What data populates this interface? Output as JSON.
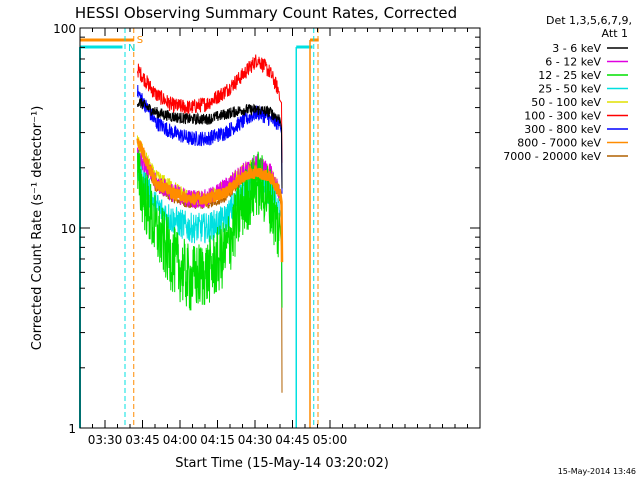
{
  "chart_data": {
    "type": "line",
    "title": "HESSI Observing Summary Count Rates, Corrected",
    "xlabel": "Start Time (15-May-14 03:20:02)",
    "ylabel": "Corrected Count Rate (s⁻¹ detector⁻¹)",
    "yscale": "log",
    "ylim": [
      1,
      100
    ],
    "xlim_minutes": [
      20,
      180
    ],
    "x_ticks": [
      {
        "label": "03:30",
        "min": 30
      },
      {
        "label": "03:45",
        "min": 45
      },
      {
        "label": "04:00",
        "min": 60
      },
      {
        "label": "04:15",
        "min": 75
      },
      {
        "label": "04:30",
        "min": 90
      },
      {
        "label": "04:45",
        "min": 105
      },
      {
        "label": "05:00",
        "min": 120
      }
    ],
    "y_ticks": [
      {
        "label": "1",
        "value": 1
      },
      {
        "label": "10",
        "value": 10
      },
      {
        "label": "100",
        "value": 100
      }
    ],
    "legend_header": [
      "Det 1,3,5,6,7,9,",
      "Att 1"
    ],
    "legend_position": "right",
    "timestamp": "15-May-2014 13:46",
    "markers": [
      {
        "label": "N",
        "min": 38.0,
        "color": "#00e0e0"
      },
      {
        "label": "S",
        "min": 41.5,
        "color": "#ff8c00"
      }
    ],
    "x_points_min": [
      43,
      50,
      57,
      64,
      71,
      78,
      85,
      91,
      96,
      100
    ],
    "series": [
      {
        "name": "3 - 6 keV",
        "color": "#000000",
        "noise": 0.03,
        "values": [
          43,
          38,
          36,
          35,
          35,
          37,
          39,
          39,
          38,
          35
        ]
      },
      {
        "name": "6 - 12 keV",
        "color": "#e000e0",
        "noise": 0.05,
        "values": [
          24,
          17,
          15,
          14,
          14,
          16,
          19,
          21,
          19,
          15
        ]
      },
      {
        "name": "12 - 25 keV",
        "color": "#00e000",
        "noise": 0.18,
        "values": [
          18,
          10,
          7,
          5.5,
          6,
          7.5,
          13,
          17,
          14,
          9
        ]
      },
      {
        "name": "25 - 50 keV",
        "color": "#00e0e0",
        "noise": 0.08,
        "values": [
          20,
          13,
          11,
          10,
          10,
          11,
          15,
          17,
          15,
          12
        ]
      },
      {
        "name": "50 - 100 keV",
        "color": "#e0e000",
        "noise": 0.04,
        "values": [
          27,
          18,
          16,
          14,
          14,
          16,
          19,
          21,
          19,
          15
        ]
      },
      {
        "name": "100 - 300 keV",
        "color": "#ff0000",
        "noise": 0.04,
        "values": [
          62,
          47,
          41,
          40,
          42,
          48,
          58,
          70,
          60,
          47
        ]
      },
      {
        "name": "300 - 800 keV",
        "color": "#0000ff",
        "noise": 0.04,
        "values": [
          48,
          34,
          30,
          28,
          28,
          30,
          34,
          38,
          35,
          33
        ]
      },
      {
        "name": "800 - 7000 keV",
        "color": "#ff8c00",
        "noise": 0.03,
        "values": [
          28,
          17,
          15,
          14,
          14,
          15,
          18,
          19,
          18,
          15
        ]
      },
      {
        "name": "7000 - 20000 keV",
        "color": "#b06000",
        "noise": 0.02,
        "values": [
          27,
          16,
          14,
          13,
          13,
          14,
          17,
          18,
          17,
          14
        ]
      }
    ]
  }
}
